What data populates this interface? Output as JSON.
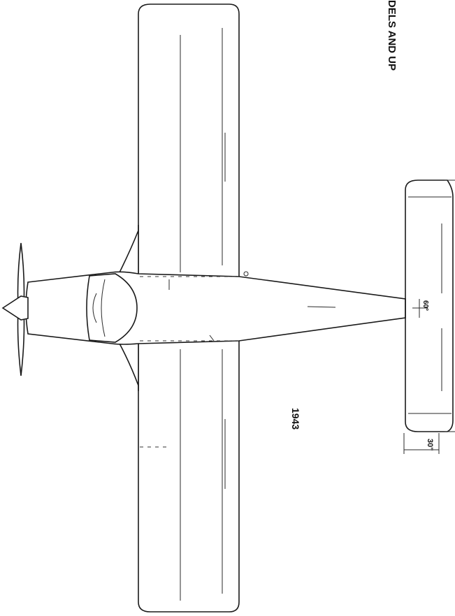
{
  "drawing": {
    "heading_fragment": "DELS AND UP",
    "year_label": "1943",
    "stab_angle_label": "60°",
    "offset_dimension_label": "30\""
  }
}
